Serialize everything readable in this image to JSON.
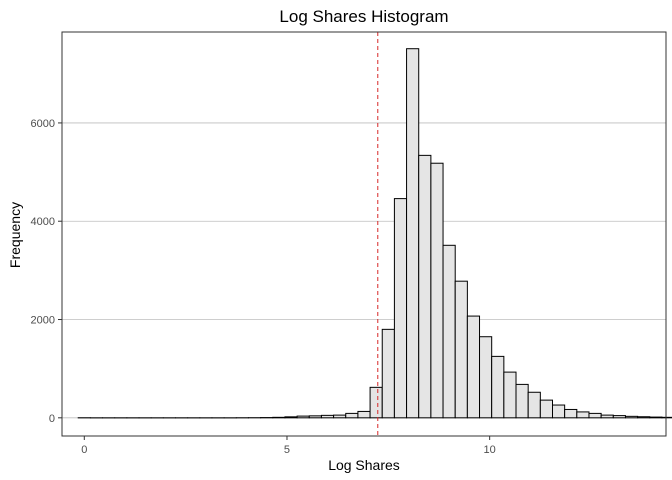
{
  "chart_data": {
    "type": "bar",
    "title": "Log Shares Histogram",
    "xlabel": "Log Shares",
    "ylabel": "Frequency",
    "xlim": [
      -0.55,
      14.35
    ],
    "ylim": [
      -370,
      7850
    ],
    "x_ticks": [
      0,
      5,
      10
    ],
    "x_tick_labels": [
      "0",
      "5",
      "10"
    ],
    "y_ticks": [
      0,
      2000,
      4000,
      6000
    ],
    "y_tick_labels": [
      "0",
      "2000",
      "4000",
      "6000"
    ],
    "grid": {
      "horizontal_major": true,
      "vertical": false
    },
    "bin_width": 0.3,
    "bins_start": -0.15,
    "values": [
      1,
      0,
      0,
      0,
      0,
      0,
      0,
      0,
      0,
      0,
      0,
      0,
      0,
      1,
      2,
      5,
      10,
      20,
      35,
      40,
      50,
      55,
      90,
      130,
      620,
      1800,
      4460,
      7510,
      5340,
      5180,
      3510,
      2780,
      2070,
      1650,
      1250,
      930,
      680,
      520,
      360,
      260,
      170,
      120,
      90,
      55,
      45,
      30,
      22,
      15,
      10,
      6,
      4,
      2,
      1,
      1,
      1
    ],
    "reference_line": {
      "x": 7.24,
      "color": "#d62728",
      "style": "dashed"
    },
    "colors": {
      "bar_fill": "#e5e5e5",
      "bar_stroke": "#000000",
      "grid": "#bebebe",
      "panel_border": "#333333"
    }
  }
}
